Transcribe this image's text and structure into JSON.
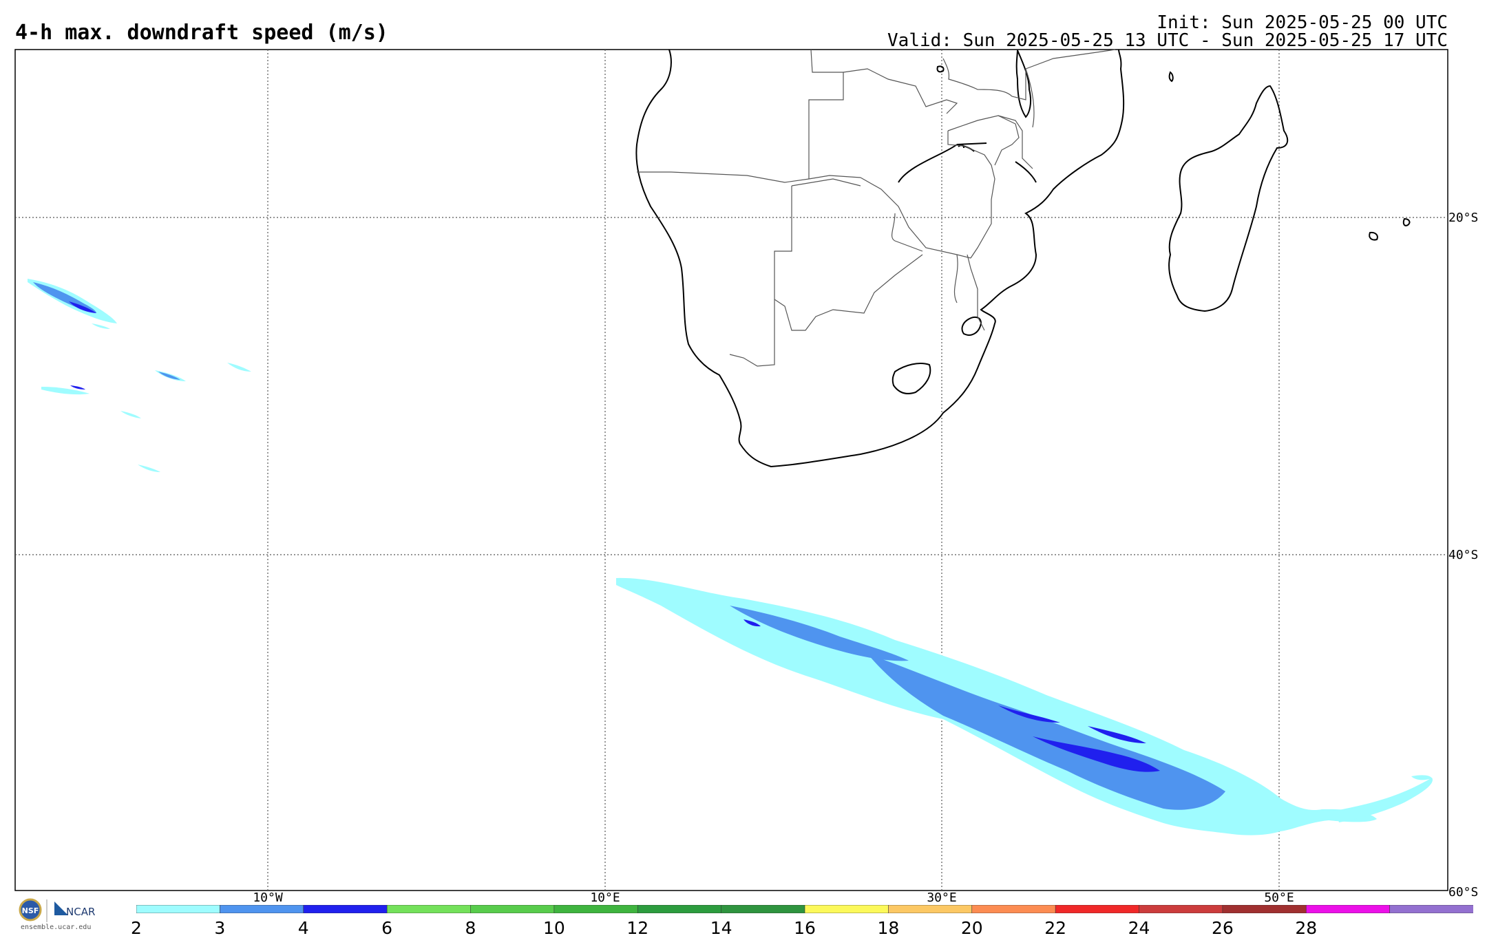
{
  "title": "4-h max. downdraft speed (m/s)",
  "init_text": "Init: Sun 2025-05-25 00 UTC",
  "valid_text": "Valid: Sun 2025-05-25 13 UTC - Sun 2025-05-25 17 UTC",
  "lon_labels": [
    "10°W",
    "10°E",
    "30°E",
    "50°E"
  ],
  "lat_labels": [
    "20°S",
    "40°S",
    "60°S"
  ],
  "colorbar": {
    "labels": [
      "2",
      "3",
      "4",
      "6",
      "8",
      "10",
      "12",
      "14",
      "16",
      "18",
      "20",
      "22",
      "24",
      "26",
      "28"
    ],
    "colors": [
      "#9ffcff",
      "#4f94ef",
      "#2020ee",
      "#74e15a",
      "#58cc4c",
      "#3fb43f",
      "#2c9c3e",
      "#2f943f",
      "#fcf95a",
      "#fcc864",
      "#fc8c52",
      "#f02828",
      "#cc3c3c",
      "#a03030",
      "#ec10e8",
      "#9370d0"
    ]
  },
  "logo": {
    "org1": "NSF",
    "org2": "NCAR",
    "url": "ensemble.ucar.edu"
  },
  "colors": {
    "light": "#9ffcff",
    "medium": "#4f94ef",
    "dark": "#2020ee",
    "coast": "#000000"
  }
}
